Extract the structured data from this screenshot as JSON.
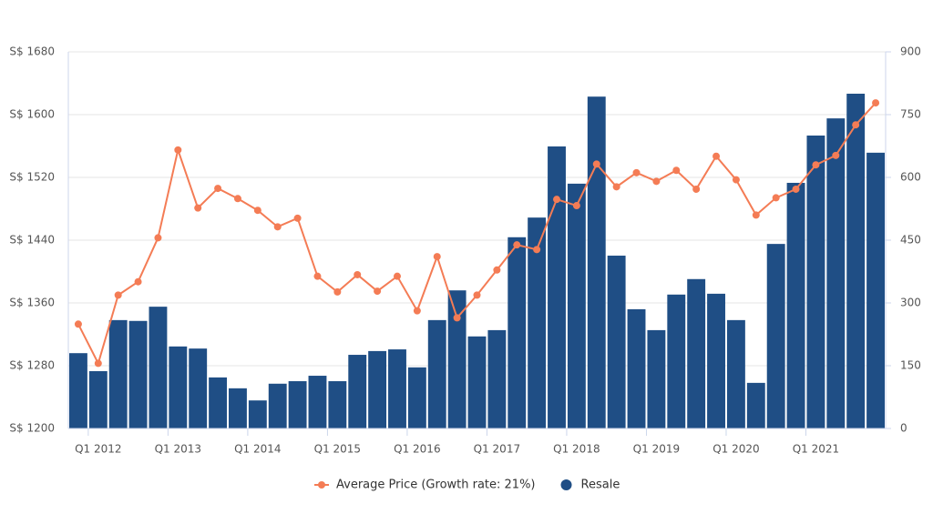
{
  "chart_data": {
    "type": "combo",
    "categories": [
      null,
      "Q1 2012",
      null,
      null,
      null,
      "Q1 2013",
      null,
      null,
      null,
      "Q1 2014",
      null,
      null,
      null,
      "Q1 2015",
      null,
      null,
      null,
      "Q1 2016",
      null,
      null,
      null,
      "Q1 2017",
      null,
      null,
      null,
      "Q1 2018",
      null,
      null,
      null,
      "Q1 2019",
      null,
      null,
      null,
      "Q1 2020",
      null,
      null,
      null,
      "Q1 2021",
      null,
      null,
      null
    ],
    "series": [
      {
        "name": "Average Price (Growth rate: 21%)",
        "type": "line",
        "axis": "y",
        "color": "#f47c55",
        "values": [
          1333,
          1283,
          1370,
          1387,
          1443,
          1555,
          1481,
          1506,
          1493,
          1478,
          1457,
          1468,
          1394,
          1374,
          1396,
          1375,
          1394,
          1350,
          1419,
          1341,
          1370,
          1402,
          1434,
          1428,
          1492,
          1484,
          1537,
          1508,
          1526,
          1515,
          1529,
          1505,
          1547,
          1517,
          1472,
          1494,
          1505,
          1536,
          1548,
          1587,
          1615
        ]
      },
      {
        "name": "Resale",
        "type": "bar",
        "axis": "y2",
        "color": "#1f4e85",
        "values": [
          180,
          137,
          259,
          257,
          291,
          196,
          191,
          122,
          96,
          67,
          107,
          113,
          126,
          113,
          176,
          185,
          189,
          146,
          259,
          330,
          220,
          235,
          457,
          504,
          674,
          585,
          793,
          413,
          285,
          235,
          320,
          357,
          322,
          259,
          109,
          441,
          587,
          700,
          741,
          800,
          659
        ]
      }
    ],
    "ylim": [
      1200,
      1680
    ],
    "yticks": [
      {
        "value": 1200,
        "label": "S$ 1200"
      },
      {
        "value": 1280,
        "label": "S$ 1280"
      },
      {
        "value": 1360,
        "label": "S$ 1360"
      },
      {
        "value": 1440,
        "label": "S$ 1440"
      },
      {
        "value": 1520,
        "label": "S$ 1520"
      },
      {
        "value": 1600,
        "label": "S$ 1600"
      },
      {
        "value": 1680,
        "label": "S$ 1680"
      }
    ],
    "y2lim": [
      0,
      900
    ],
    "y2ticks": [
      0,
      150,
      300,
      450,
      600,
      750,
      900
    ],
    "grid": true
  }
}
